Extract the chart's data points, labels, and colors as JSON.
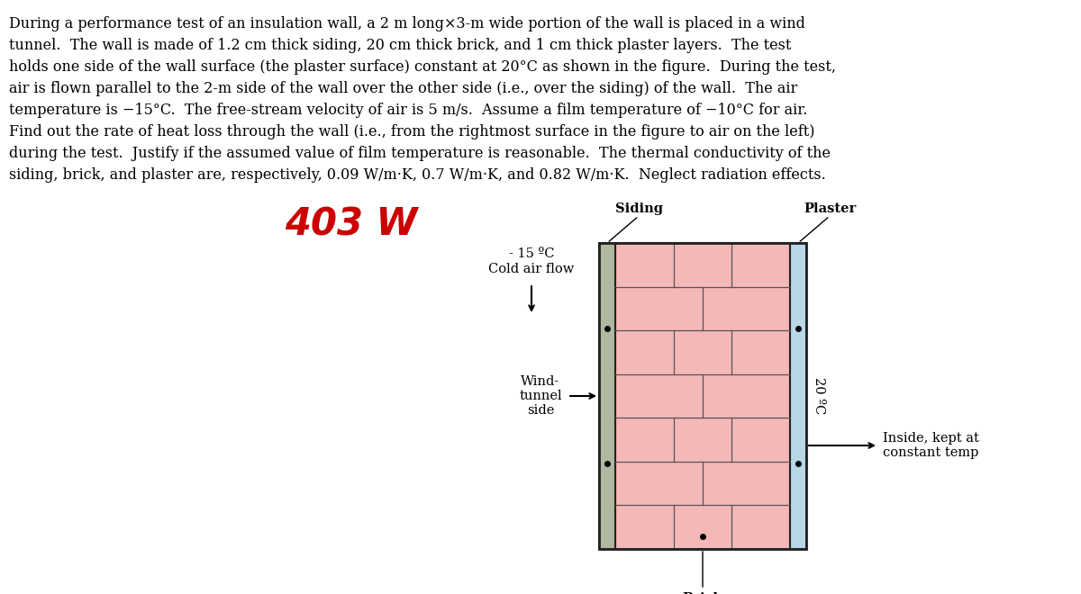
{
  "title_text_lines": [
    "During a performance test of an insulation wall, a 2 m long×3-m wide portion of the wall is placed in a wind",
    "tunnel.  The wall is made of 1.2 cm thick siding, 20 cm thick brick, and 1 cm thick plaster layers.  The test",
    "holds one side of the wall surface (the plaster surface) constant at 20°C as shown in the figure.  During the test,",
    "air is flown parallel to the 2-m side of the wall over the other side (i.e., over the siding) of the wall.  The air",
    "temperature is −15°C.  The free-stream velocity of air is 5 m/s.  Assume a film temperature of −10°C for air.",
    "Find out the rate of heat loss through the wall (i.e., from the rightmost surface in the figure to air on the left)",
    "during the test.  Justify if the assumed value of film temperature is reasonable.  The thermal conductivity of the",
    "siding, brick, and plaster are, respectively, 0.09 W/m·K, 0.7 W/m·K, and 0.82 W/m·K.  Neglect radiation effects."
  ],
  "answer": "403 W",
  "answer_color": "#cc0000",
  "answer_fontsize": 30,
  "bg_color": "#ffffff",
  "siding_color": "#b0b8a0",
  "brick_color": "#f5b8b8",
  "plaster_color": "#b8d8e8",
  "brick_line_color": "#555555",
  "wall_border_color": "#222222",
  "text_fontsize": 11.5,
  "label_fontsize": 10.5,
  "annot_fontsize": 10.5,
  "num_brick_rows": 7,
  "cold_air_label_line1": "- 15 ºC",
  "cold_air_label_line2": "Cold air flow",
  "wind_tunnel_label": "Wind-\ntunnel\nside",
  "temp_label": "20 ºC",
  "inside_label_line1": "Inside, kept at",
  "inside_label_line2": "constant temp",
  "siding_label": "Siding",
  "plaster_label": "Plaster",
  "brick_label": "Brick"
}
